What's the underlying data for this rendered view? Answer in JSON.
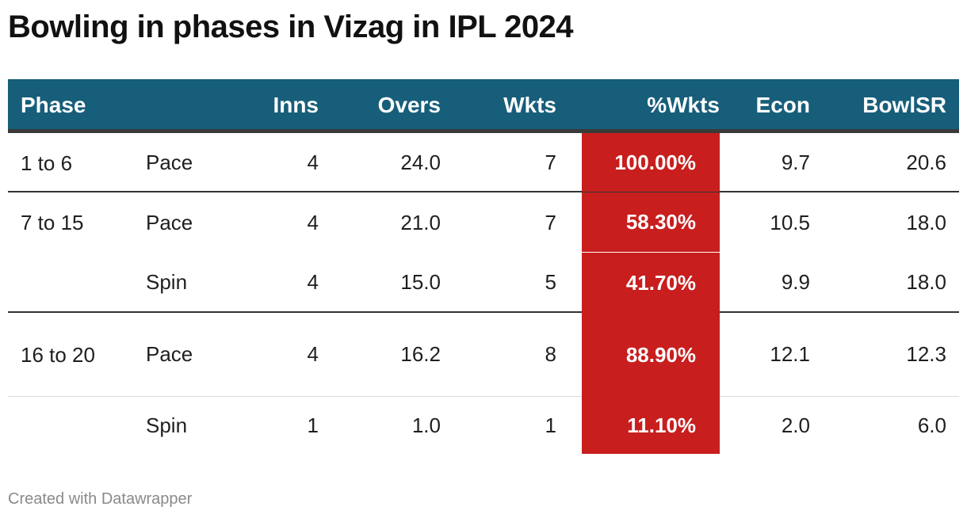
{
  "title": "Bowling in phases in Vizag in IPL 2024",
  "footer": "Created with Datawrapper",
  "colors": {
    "header_bg": "#175e7a",
    "highlight": "#c81e1e"
  },
  "chart_data": {
    "type": "table",
    "title": "Bowling in phases in Vizag in IPL 2024",
    "columns": [
      "Phase",
      "",
      "Inns",
      "Overs",
      "Wkts",
      "%Wkts",
      "Econ",
      "BowlSR"
    ],
    "rows": [
      {
        "phase": "1 to 6",
        "type": "Pace",
        "inns": "4",
        "overs": "24.0",
        "wkts": "7",
        "pct_wkts": "100.00%",
        "econ": "9.7",
        "bowl_sr": "20.6"
      },
      {
        "phase": "7 to 15",
        "type": "Pace",
        "inns": "4",
        "overs": "21.0",
        "wkts": "7",
        "pct_wkts": "58.30%",
        "econ": "10.5",
        "bowl_sr": "18.0"
      },
      {
        "phase": "",
        "type": "Spin",
        "inns": "4",
        "overs": "15.0",
        "wkts": "5",
        "pct_wkts": "41.70%",
        "econ": "9.9",
        "bowl_sr": "18.0"
      },
      {
        "phase": "16 to 20",
        "type": "Pace",
        "inns": "4",
        "overs": "16.2",
        "wkts": "8",
        "pct_wkts": "88.90%",
        "econ": "12.1",
        "bowl_sr": "12.3"
      },
      {
        "phase": "",
        "type": "Spin",
        "inns": "1",
        "overs": "1.0",
        "wkts": "1",
        "pct_wkts": "11.10%",
        "econ": "2.0",
        "bowl_sr": "6.0"
      }
    ]
  }
}
